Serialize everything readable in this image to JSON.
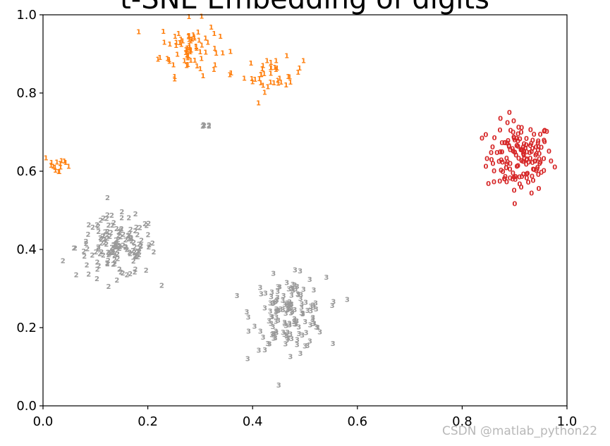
{
  "chart_data": {
    "type": "scatter",
    "title": "t-SNE Embedding of digits",
    "xlim": [
      0.0,
      1.0
    ],
    "ylim": [
      0.0,
      1.0
    ],
    "x_ticks": [
      "0.0",
      "0.2",
      "0.4",
      "0.6",
      "0.8",
      "1.0"
    ],
    "y_ticks": [
      "0.0",
      "0.2",
      "0.4",
      "0.6",
      "0.8",
      "1.0"
    ],
    "grid": false,
    "clusters": [
      {
        "label": "0",
        "color": "#d62728",
        "center": [
          0.91,
          0.63
        ],
        "spread": [
          0.045,
          0.065
        ],
        "count": 150
      },
      {
        "label": "1",
        "color": "#ff7f0e",
        "center": [
          0.28,
          0.91
        ],
        "spread": [
          0.04,
          0.05
        ],
        "count": 75
      },
      {
        "label": "1",
        "color": "#ff7f0e",
        "center": [
          0.44,
          0.84
        ],
        "spread": [
          0.04,
          0.03
        ],
        "count": 40
      },
      {
        "label": "1",
        "color": "#ff7f0e",
        "center": [
          0.03,
          0.61
        ],
        "spread": [
          0.02,
          0.02
        ],
        "count": 15
      },
      {
        "label": "2",
        "color": "#999999",
        "center": [
          0.14,
          0.4
        ],
        "spread": [
          0.055,
          0.055
        ],
        "count": 150
      },
      {
        "label": "2",
        "color": "#999999",
        "center": [
          0.31,
          0.705
        ],
        "spread": [
          0.01,
          0.008
        ],
        "count": 5
      },
      {
        "label": "3",
        "color": "#999999",
        "center": [
          0.47,
          0.23
        ],
        "spread": [
          0.05,
          0.065
        ],
        "count": 150
      }
    ]
  },
  "watermark": "CSDN @matlab_python22"
}
